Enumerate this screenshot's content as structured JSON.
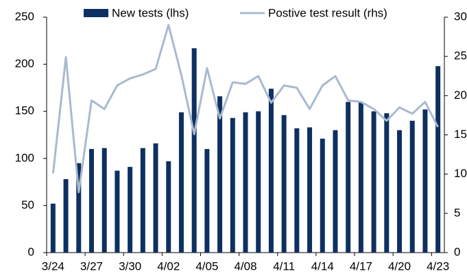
{
  "chart_data": {
    "type": "bar",
    "categories": [
      "3/24",
      null,
      null,
      "3/27",
      null,
      null,
      "3/30",
      null,
      null,
      "4/02",
      null,
      null,
      "4/05",
      null,
      null,
      "4/08",
      null,
      null,
      "4/11",
      null,
      null,
      "4/14",
      null,
      null,
      "4/17",
      null,
      null,
      "4/20",
      null,
      null,
      "4/23"
    ],
    "series": [
      {
        "name": "New tests (lhs)",
        "type": "bar",
        "color": "#0d3060",
        "values": [
          52,
          78,
          95,
          110,
          111,
          87,
          91,
          111,
          116,
          97,
          149,
          217,
          110,
          166,
          143,
          149,
          150,
          174,
          146,
          132,
          133,
          121,
          130,
          160,
          160,
          150,
          148,
          130,
          140,
          152,
          198
        ]
      },
      {
        "name": "Postive test result (rhs)",
        "type": "line",
        "axis": "y2",
        "color": "#a9b9d0",
        "values": [
          10.1,
          24.9,
          7.7,
          19.4,
          18.3,
          21.3,
          22.2,
          22.7,
          23.4,
          29,
          22.6,
          15.1,
          23.5,
          17.1,
          21.7,
          21.5,
          22.5,
          19.1,
          21.3,
          21,
          18.3,
          21.3,
          22.5,
          19.4,
          19.2,
          18.3,
          16.8,
          18.5,
          17.7,
          19.2,
          16
        ]
      }
    ],
    "ylim": [
      0,
      250
    ],
    "yticks": [
      0,
      50,
      100,
      150,
      200,
      250
    ],
    "y2lim": [
      0,
      30
    ],
    "y2ticks": [
      0,
      5,
      10,
      15,
      20,
      25,
      30
    ],
    "legend": "top",
    "grid": false
  }
}
